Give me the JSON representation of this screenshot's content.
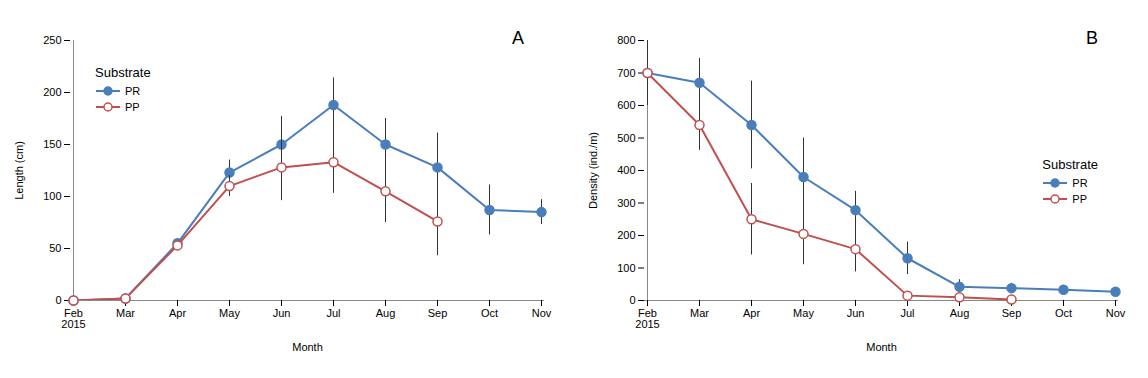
{
  "chart_data": [
    {
      "type": "line",
      "annotation": "A",
      "x_label": "Month",
      "y_label": "Length (cm)",
      "legend_title": "Substrate",
      "legend": "upper left",
      "categories": [
        "Feb\n2015",
        "Mar",
        "Apr",
        "May",
        "Jun",
        "Jul",
        "Aug",
        "Sep",
        "Oct",
        "Nov"
      ],
      "ylim": [
        0,
        250
      ],
      "yticks": [
        0,
        50,
        100,
        150,
        200,
        250
      ],
      "series": [
        {
          "name": "PR",
          "color": "#4a7ebb",
          "marker": "circle",
          "values": [
            0,
            2,
            55,
            123,
            150,
            188,
            150,
            128,
            87,
            85
          ],
          "errors": [
            null,
            null,
            null,
            12,
            27,
            26,
            25,
            33,
            24,
            12
          ]
        },
        {
          "name": "PP",
          "color": "#c0504d",
          "marker": "open circle",
          "values": [
            0,
            2,
            53,
            110,
            128,
            133,
            105,
            76,
            null,
            null
          ],
          "errors": [
            null,
            null,
            null,
            10,
            32,
            30,
            30,
            33,
            null,
            null
          ]
        }
      ]
    },
    {
      "type": "line",
      "annotation": "B",
      "x_label": "Month",
      "y_label": "Density (ind./m)",
      "legend_title": "Substrate",
      "legend": "center right",
      "categories": [
        "Feb\n2015",
        "Mar",
        "Apr",
        "May",
        "Jun",
        "Jul",
        "Aug",
        "Sep",
        "Oct",
        "Nov"
      ],
      "ylim": [
        0,
        800
      ],
      "yticks": [
        0,
        100,
        200,
        300,
        400,
        500,
        600,
        700,
        800
      ],
      "series": [
        {
          "name": "PR",
          "color": "#4a7ebb",
          "marker": "circle",
          "values": [
            700,
            670,
            540,
            380,
            278,
            130,
            42,
            38,
            33,
            27
          ],
          "errors": [
            100,
            75,
            135,
            120,
            58,
            50,
            22,
            15,
            8,
            8
          ]
        },
        {
          "name": "PP",
          "color": "#c0504d",
          "marker": "open circle",
          "values": [
            700,
            540,
            250,
            205,
            158,
            15,
            10,
            3,
            null,
            null
          ],
          "errors": [
            100,
            78,
            110,
            95,
            70,
            10,
            5,
            3,
            null,
            null
          ]
        }
      ]
    }
  ]
}
